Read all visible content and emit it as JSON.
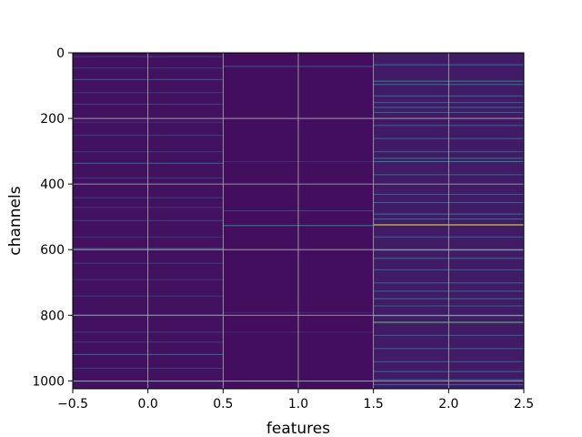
{
  "chart_data": {
    "type": "heatmap",
    "title": "",
    "xlabel": "features",
    "ylabel": "channels",
    "xlim": [
      -0.5,
      2.5
    ],
    "ylim": [
      1024,
      0
    ],
    "x_ticks": [
      -0.5,
      0.0,
      0.5,
      1.0,
      1.5,
      2.0,
      2.5
    ],
    "x_tick_labels": [
      "−0.5",
      "0.0",
      "0.5",
      "1.0",
      "1.5",
      "2.0",
      "2.5"
    ],
    "y_ticks": [
      0,
      200,
      400,
      600,
      800,
      1000
    ],
    "y_tick_labels": [
      "0",
      "200",
      "400",
      "600",
      "800",
      "1000"
    ],
    "grid": true,
    "colormap": "viridis",
    "columns": [
      {
        "feature": 0,
        "base": 0.05,
        "bands": [
          {
            "row": 10,
            "value": 0.18
          },
          {
            "row": 45,
            "value": 0.16
          },
          {
            "row": 80,
            "value": 0.25
          },
          {
            "row": 120,
            "value": 0.17
          },
          {
            "row": 155,
            "value": 0.2
          },
          {
            "row": 210,
            "value": 0.15
          },
          {
            "row": 250,
            "value": 0.19
          },
          {
            "row": 300,
            "value": 0.16
          },
          {
            "row": 335,
            "value": 0.3
          },
          {
            "row": 380,
            "value": 0.17
          },
          {
            "row": 440,
            "value": 0.18
          },
          {
            "row": 470,
            "value": 0.16
          },
          {
            "row": 510,
            "value": 0.19
          },
          {
            "row": 560,
            "value": 0.16
          },
          {
            "row": 595,
            "value": 0.25
          },
          {
            "row": 640,
            "value": 0.18
          },
          {
            "row": 690,
            "value": 0.17
          },
          {
            "row": 740,
            "value": 0.16
          },
          {
            "row": 798,
            "value": 0.3
          },
          {
            "row": 850,
            "value": 0.18
          },
          {
            "row": 880,
            "value": 0.17
          },
          {
            "row": 918,
            "value": 0.32
          },
          {
            "row": 960,
            "value": 0.18
          },
          {
            "row": 1000,
            "value": 0.2
          }
        ]
      },
      {
        "feature": 1,
        "base": 0.04,
        "bands": [
          {
            "row": 40,
            "value": 0.25
          },
          {
            "row": 330,
            "value": 0.14
          },
          {
            "row": 480,
            "value": 0.2
          },
          {
            "row": 525,
            "value": 0.42
          },
          {
            "row": 790,
            "value": 0.14
          },
          {
            "row": 850,
            "value": 0.13
          },
          {
            "row": 1000,
            "value": 0.16
          }
        ]
      },
      {
        "feature": 2,
        "base": 0.08,
        "bands": [
          {
            "row": 35,
            "value": 0.35
          },
          {
            "row": 85,
            "value": 0.45
          },
          {
            "row": 95,
            "value": 0.38
          },
          {
            "row": 130,
            "value": 0.32
          },
          {
            "row": 150,
            "value": 0.3
          },
          {
            "row": 165,
            "value": 0.34
          },
          {
            "row": 180,
            "value": 0.3
          },
          {
            "row": 220,
            "value": 0.28
          },
          {
            "row": 260,
            "value": 0.28
          },
          {
            "row": 300,
            "value": 0.26
          },
          {
            "row": 320,
            "value": 0.36
          },
          {
            "row": 330,
            "value": 0.42
          },
          {
            "row": 370,
            "value": 0.3
          },
          {
            "row": 430,
            "value": 0.28
          },
          {
            "row": 455,
            "value": 0.32
          },
          {
            "row": 490,
            "value": 0.36
          },
          {
            "row": 505,
            "value": 0.34
          },
          {
            "row": 523,
            "value": 0.95
          },
          {
            "row": 560,
            "value": 0.3
          },
          {
            "row": 600,
            "value": 0.32
          },
          {
            "row": 625,
            "value": 0.34
          },
          {
            "row": 660,
            "value": 0.3
          },
          {
            "row": 700,
            "value": 0.3
          },
          {
            "row": 725,
            "value": 0.32
          },
          {
            "row": 748,
            "value": 0.36
          },
          {
            "row": 770,
            "value": 0.28
          },
          {
            "row": 800,
            "value": 0.32
          },
          {
            "row": 820,
            "value": 0.72
          },
          {
            "row": 860,
            "value": 0.28
          },
          {
            "row": 900,
            "value": 0.3
          },
          {
            "row": 940,
            "value": 0.28
          },
          {
            "row": 970,
            "value": 0.34
          },
          {
            "row": 995,
            "value": 0.32
          },
          {
            "row": 1010,
            "value": 0.3
          }
        ]
      }
    ]
  }
}
